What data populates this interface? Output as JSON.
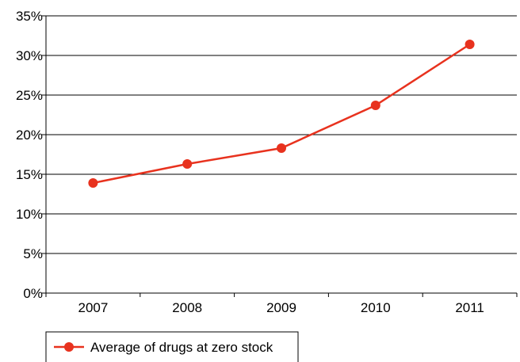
{
  "chart_data": {
    "type": "line",
    "title": "",
    "xlabel": "",
    "ylabel": "",
    "categories": [
      "2007",
      "2008",
      "2009",
      "2010",
      "2011"
    ],
    "series": [
      {
        "name": "Average of drugs at zero stock",
        "values": [
          13.9,
          16.3,
          18.3,
          23.7,
          31.4
        ],
        "color": "#e8321e"
      }
    ],
    "ylim": [
      0,
      35
    ],
    "y_ticks": [
      0,
      5,
      10,
      15,
      20,
      25,
      30,
      35
    ],
    "y_tick_labels": [
      "0%",
      "5%",
      "10%",
      "15%",
      "20%",
      "25%",
      "30%",
      "35%"
    ],
    "grid": true,
    "legend": "bottom-left"
  }
}
